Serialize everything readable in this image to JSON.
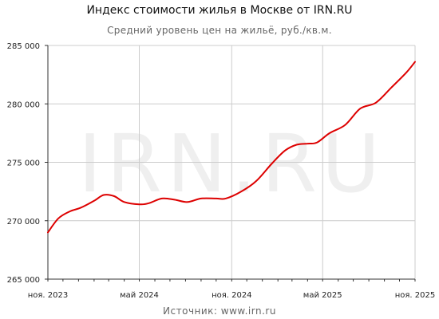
{
  "header": {
    "title": "Индекс стоимости жилья в Москве от IRN.RU",
    "subtitle": "Средний уровень цен на жильё, руб./кв.м."
  },
  "footer": {
    "source": "Источник: www.irn.ru"
  },
  "watermark": "IRN.RU",
  "chart_data": {
    "type": "line",
    "title": "Индекс стоимости жилья в Москве от IRN.RU",
    "subtitle": "Средний уровень цен на жильё, руб./кв.м.",
    "xlabel": "",
    "ylabel": "",
    "ylim": [
      265000,
      285000
    ],
    "yticks": [
      265000,
      270000,
      275000,
      280000,
      285000
    ],
    "ytick_labels": [
      "265 000",
      "270 000",
      "275 000",
      "280 000",
      "285 000"
    ],
    "xlim": [
      "2023-11-01",
      "2025-11-01"
    ],
    "xticks": [
      "2023-11-01",
      "2024-05-01",
      "2024-11-01",
      "2025-05-01",
      "2025-11-01"
    ],
    "xtick_labels": [
      "ноя. 2023",
      "май 2024",
      "ноя. 2024",
      "май 2025",
      "ноя. 2025"
    ],
    "grid": true,
    "line_color": "#dd0000",
    "series": [
      {
        "points": [
          [
            "2023-11-01",
            269000
          ],
          [
            "2023-11-22",
            270200
          ],
          [
            "2023-12-15",
            270800
          ],
          [
            "2024-01-05",
            271100
          ],
          [
            "2024-02-01",
            271700
          ],
          [
            "2024-02-20",
            272200
          ],
          [
            "2024-03-12",
            272100
          ],
          [
            "2024-04-01",
            271600
          ],
          [
            "2024-05-01",
            271400
          ],
          [
            "2024-05-20",
            271500
          ],
          [
            "2024-06-15",
            271900
          ],
          [
            "2024-07-10",
            271800
          ],
          [
            "2024-08-05",
            271600
          ],
          [
            "2024-09-01",
            271900
          ],
          [
            "2024-10-01",
            271900
          ],
          [
            "2024-10-20",
            271900
          ],
          [
            "2024-11-20",
            272500
          ],
          [
            "2024-12-20",
            273400
          ],
          [
            "2025-01-20",
            274900
          ],
          [
            "2025-02-15",
            276000
          ],
          [
            "2025-03-10",
            276500
          ],
          [
            "2025-04-01",
            276600
          ],
          [
            "2025-04-20",
            276700
          ],
          [
            "2025-05-15",
            277500
          ],
          [
            "2025-06-15",
            278200
          ],
          [
            "2025-07-15",
            279600
          ],
          [
            "2025-08-15",
            280100
          ],
          [
            "2025-09-15",
            281400
          ],
          [
            "2025-10-15",
            282700
          ],
          [
            "2025-11-01",
            283600
          ]
        ]
      }
    ]
  }
}
